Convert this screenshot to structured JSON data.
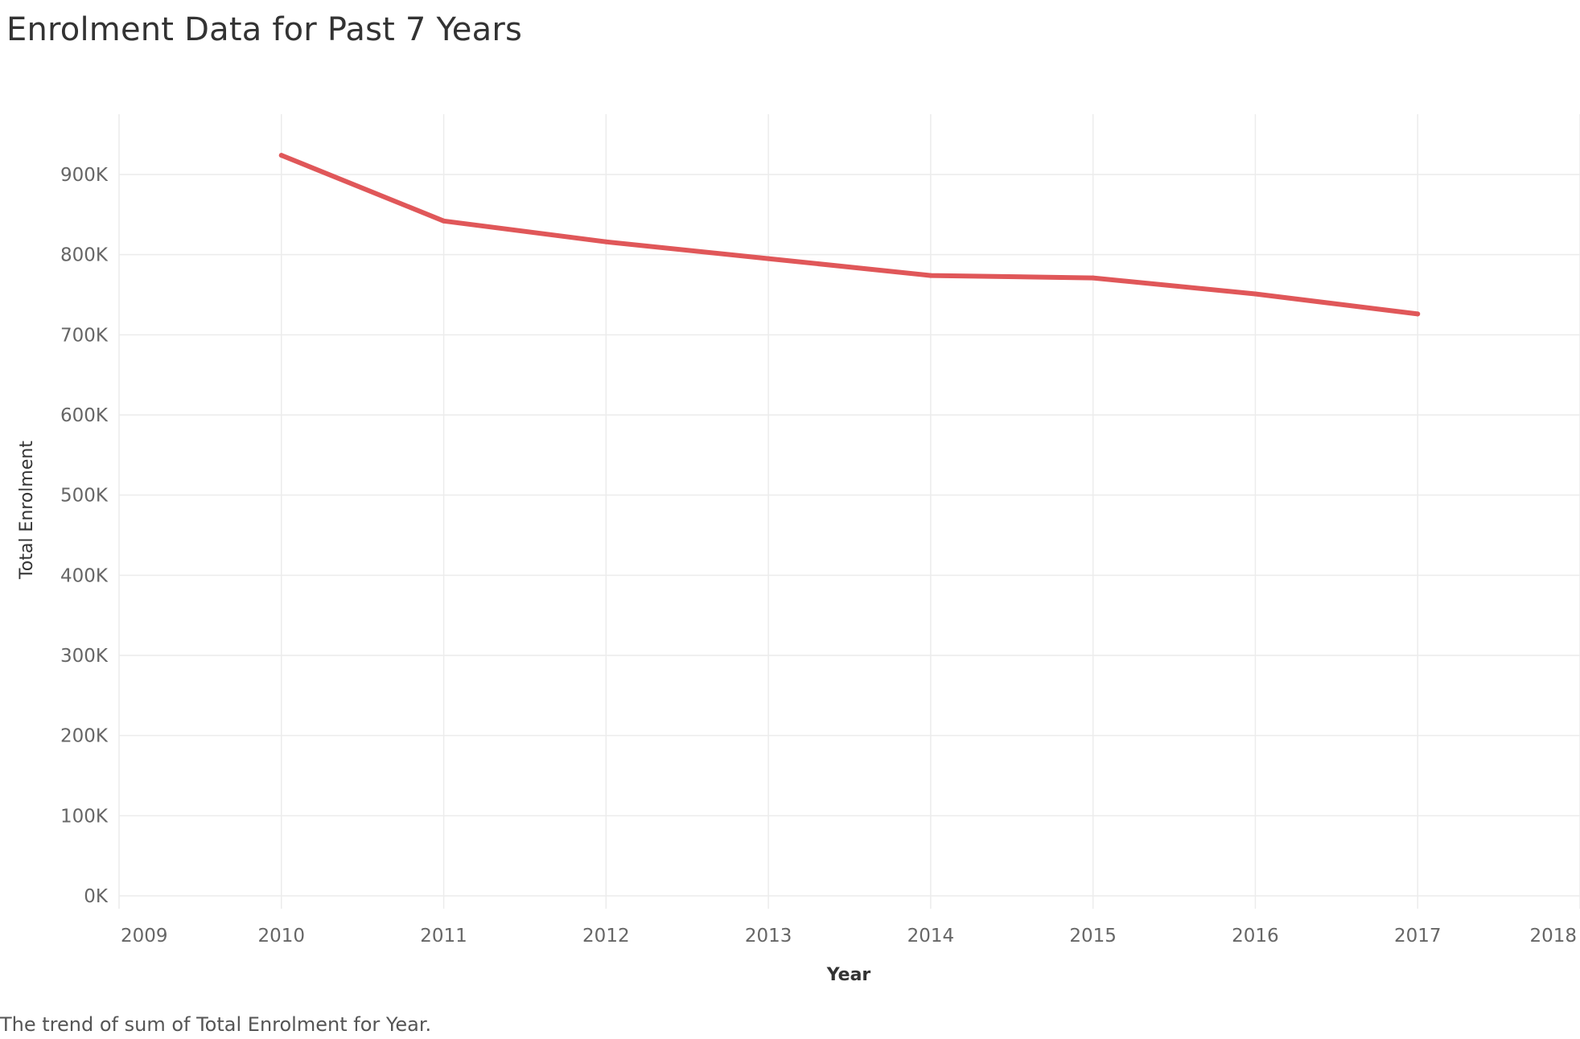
{
  "title": "Enrolment Data for Past 7 Years",
  "caption": "The trend of sum of Total Enrolment for Year.",
  "colors": {
    "line": "#e05759",
    "grid": "#ececec",
    "text": "#666666"
  },
  "chart_data": {
    "type": "line",
    "title": "Enrolment Data for Past 7 Years",
    "xlabel": "Year",
    "ylabel": "Total Enrolment",
    "x_ticks": [
      "2009",
      "2010",
      "2011",
      "2012",
      "2013",
      "2014",
      "2015",
      "2016",
      "2017",
      "2018"
    ],
    "y_ticks": [
      "0K",
      "100K",
      "200K",
      "300K",
      "400K",
      "500K",
      "600K",
      "700K",
      "800K",
      "900K"
    ],
    "xlim": [
      2009,
      2018
    ],
    "ylim": [
      0,
      900000
    ],
    "grid": true,
    "series": [
      {
        "x": [
          2010,
          2011,
          2012,
          2013,
          2014,
          2015,
          2016,
          2017
        ],
        "values": [
          924000,
          842000,
          816000,
          795000,
          774000,
          771000,
          751000,
          726000
        ]
      }
    ]
  }
}
